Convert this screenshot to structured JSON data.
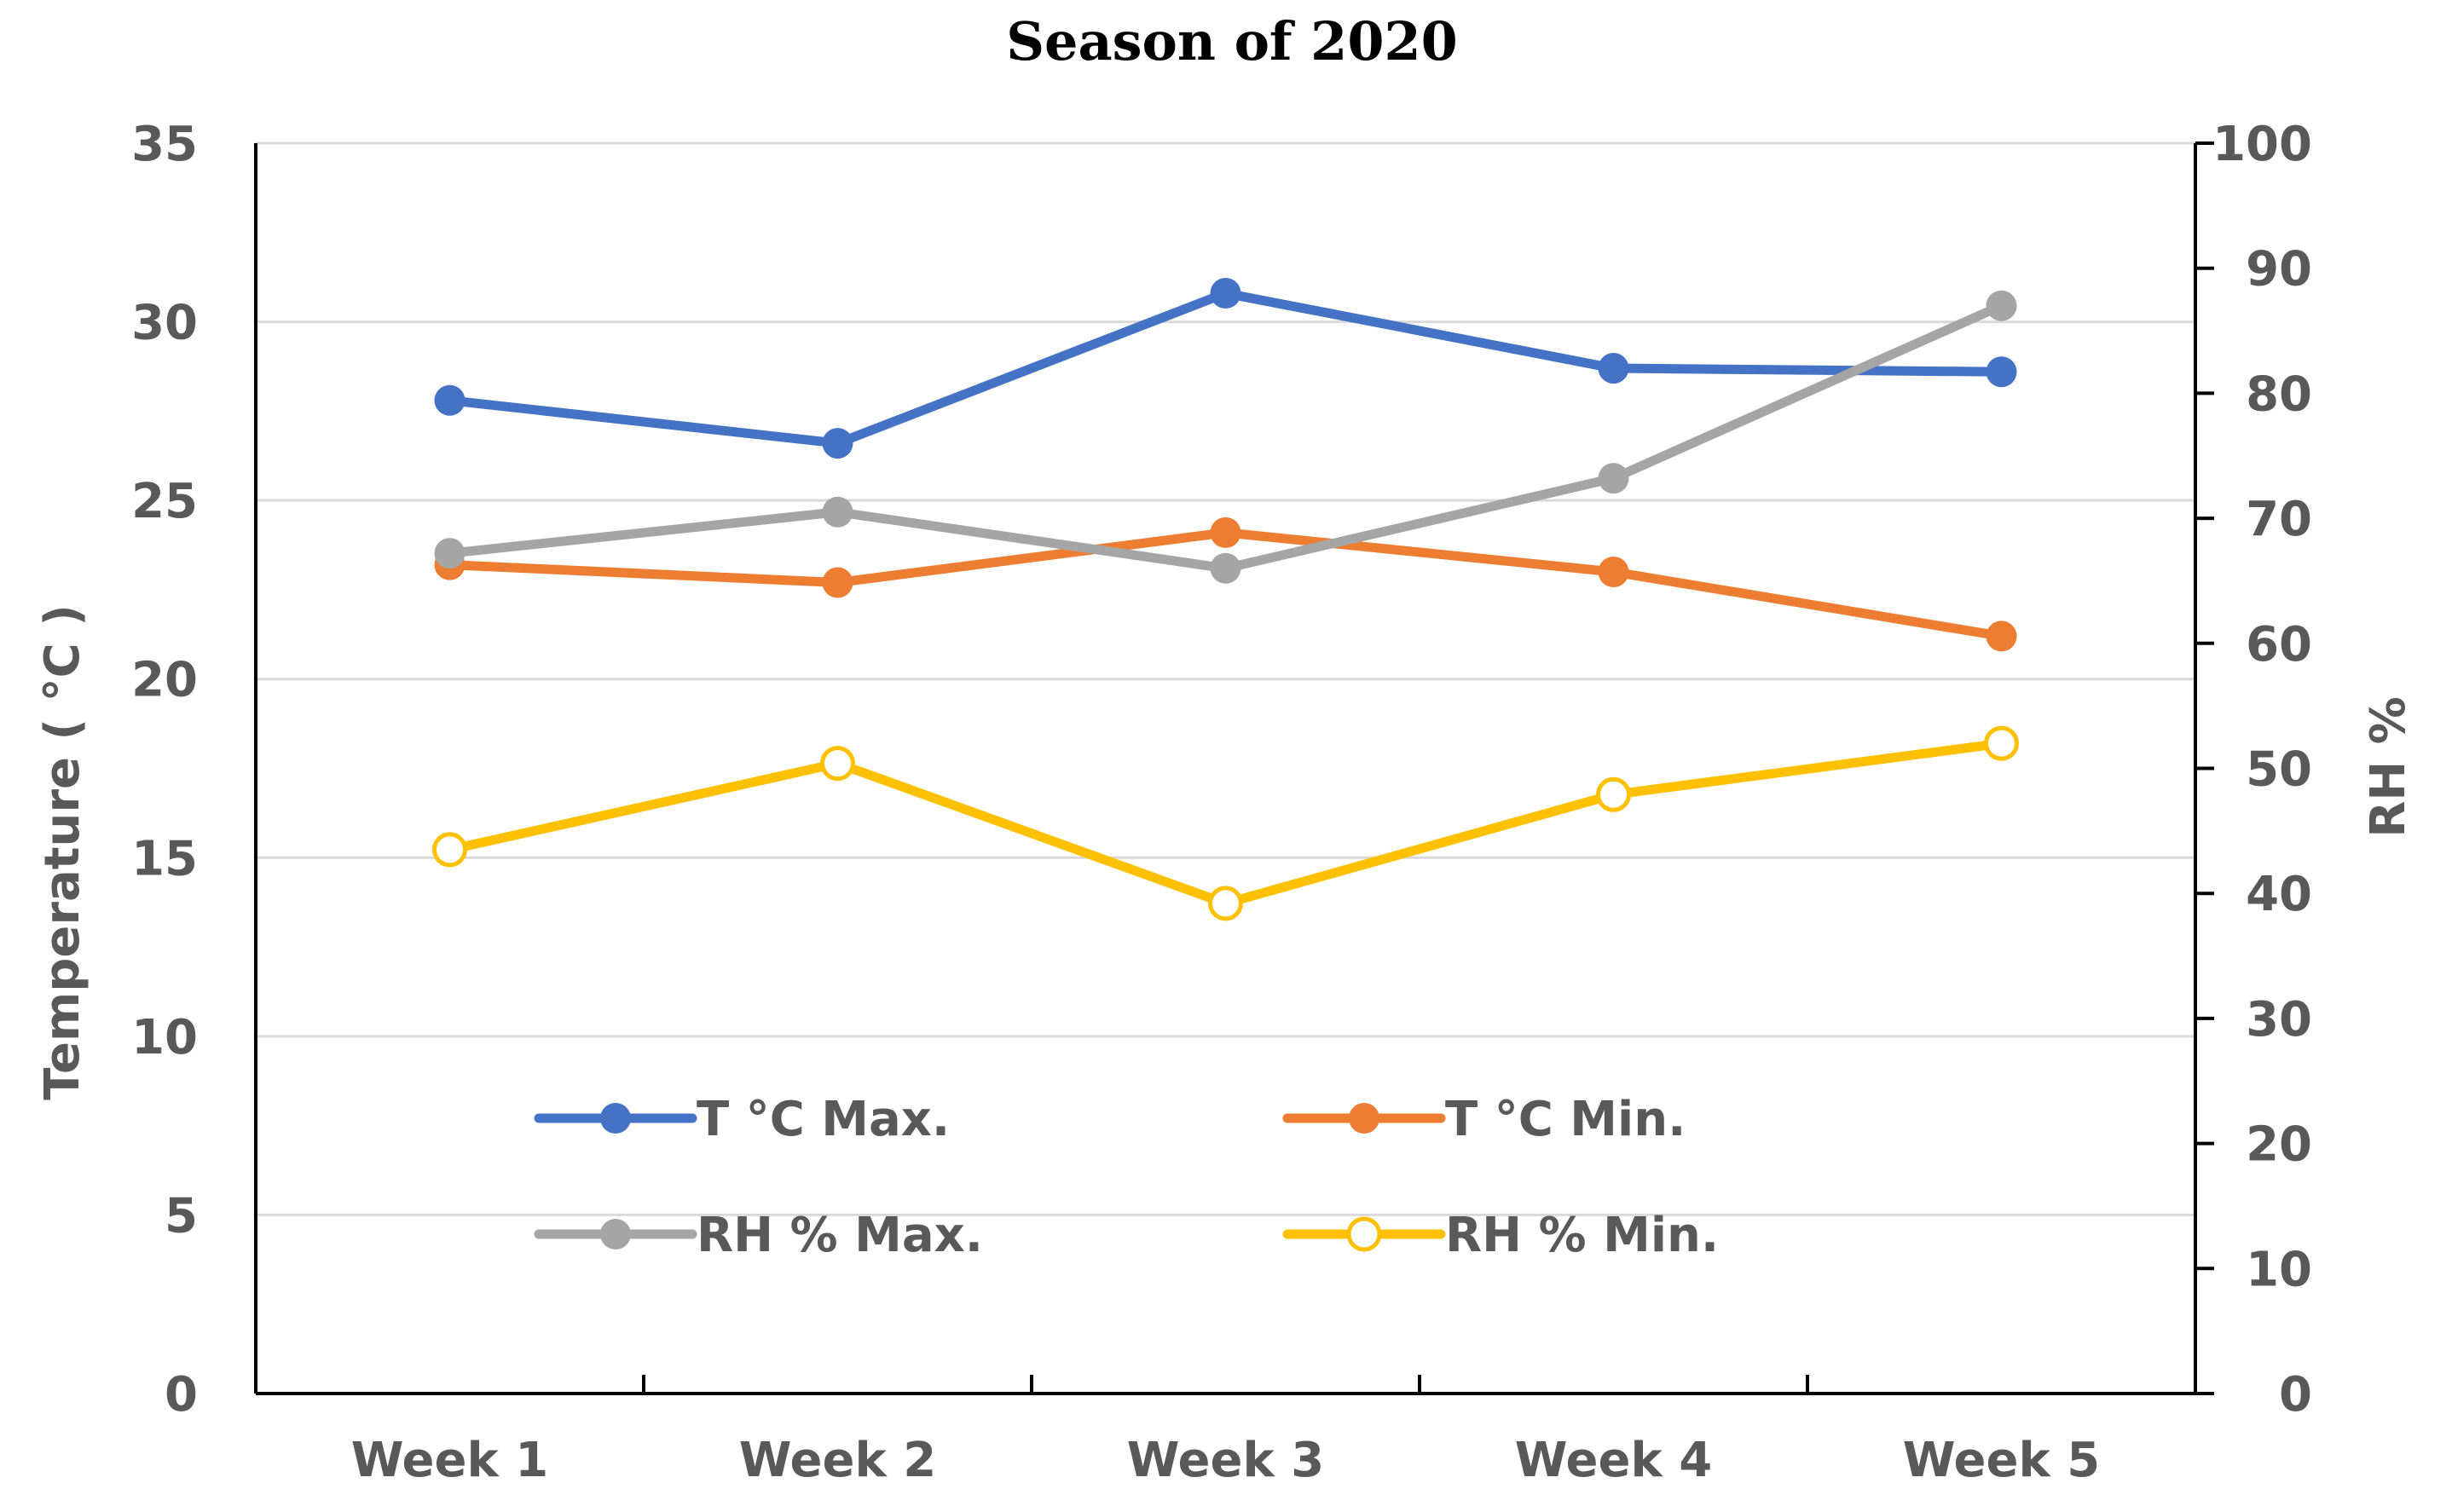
{
  "chart_data": {
    "type": "line",
    "title": "Season of 2020",
    "categories": [
      "Week 1",
      "Week 2",
      "Week 3",
      "Week 4",
      "Week 5"
    ],
    "y_left": {
      "label": "Temperature ( °C )",
      "range": [
        0,
        35
      ],
      "ticks": [
        0,
        5,
        10,
        15,
        20,
        25,
        30,
        35
      ]
    },
    "y_right": {
      "label": "RH %",
      "range": [
        0,
        100
      ],
      "ticks": [
        0,
        10,
        20,
        30,
        40,
        50,
        60,
        70,
        80,
        90,
        100
      ]
    },
    "grid": true,
    "legend_position": "inside-bottom-left",
    "series": [
      {
        "name": "T °C Max.",
        "axis": "left",
        "color": "#4472C4",
        "marker": "filled-circle",
        "values": [
          27.8,
          26.6,
          30.8,
          28.7,
          28.6
        ]
      },
      {
        "name": "T °C Min.",
        "axis": "left",
        "color": "#ED7D31",
        "marker": "filled-circle",
        "values": [
          23.2,
          22.7,
          24.1,
          23.0,
          21.2
        ]
      },
      {
        "name": "RH % Max.",
        "axis": "right",
        "color": "#A5A5A5",
        "marker": "filled-circle",
        "values": [
          67.2,
          70.5,
          66.0,
          73.2,
          87.0
        ]
      },
      {
        "name": "RH % Min.",
        "axis": "right",
        "color": "#FFC000",
        "marker": "open-circle",
        "values": [
          43.5,
          50.4,
          39.2,
          47.9,
          52.0
        ]
      }
    ]
  }
}
